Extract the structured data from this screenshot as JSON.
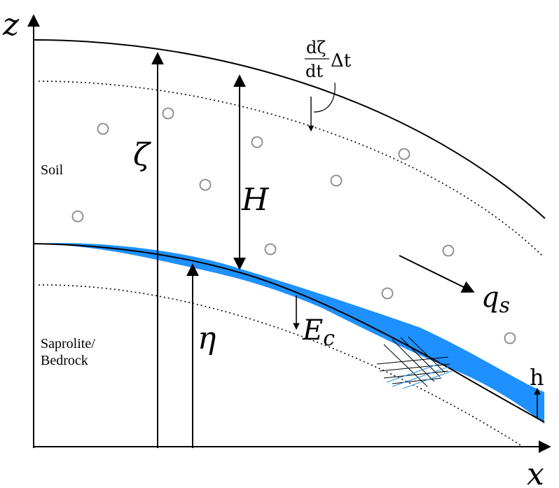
{
  "axes": {
    "x_label": "x",
    "z_label": "z"
  },
  "layers": {
    "soil_label": "Soil",
    "bedrock_label_line1": "Saprolite/",
    "bedrock_label_line2": "Bedrock"
  },
  "symbols": {
    "zeta": "ζ",
    "H": "H",
    "eta": "η",
    "Ec_main": "E",
    "Ec_sub": "c",
    "qs_main": "q",
    "qs_sub": "s",
    "h": "h",
    "rate_num": "dζ",
    "rate_den": "dt",
    "rate_dt": "Δt"
  },
  "colors": {
    "water_layer": "#1e90ff",
    "line": "#000000",
    "particle": "#888888"
  }
}
